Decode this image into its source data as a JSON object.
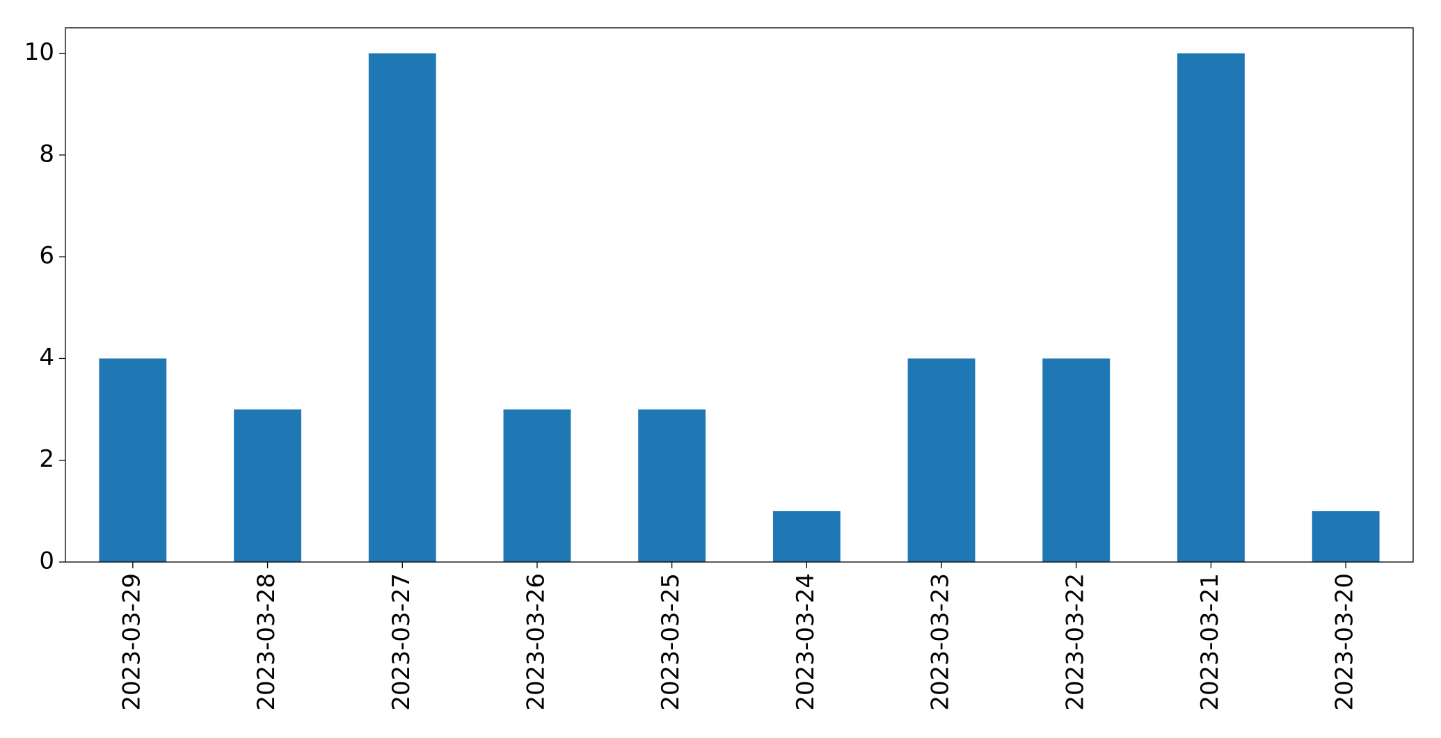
{
  "chart_data": {
    "type": "bar",
    "categories": [
      "2023-03-29",
      "2023-03-28",
      "2023-03-27",
      "2023-03-26",
      "2023-03-25",
      "2023-03-24",
      "2023-03-23",
      "2023-03-22",
      "2023-03-21",
      "2023-03-20"
    ],
    "values": [
      4,
      3,
      10,
      3,
      3,
      1,
      4,
      4,
      10,
      1
    ],
    "color": "#1f77b4",
    "ylim": [
      0,
      10.5
    ],
    "yticks": [
      0,
      2,
      4,
      6,
      8,
      10
    ],
    "grid": false
  }
}
